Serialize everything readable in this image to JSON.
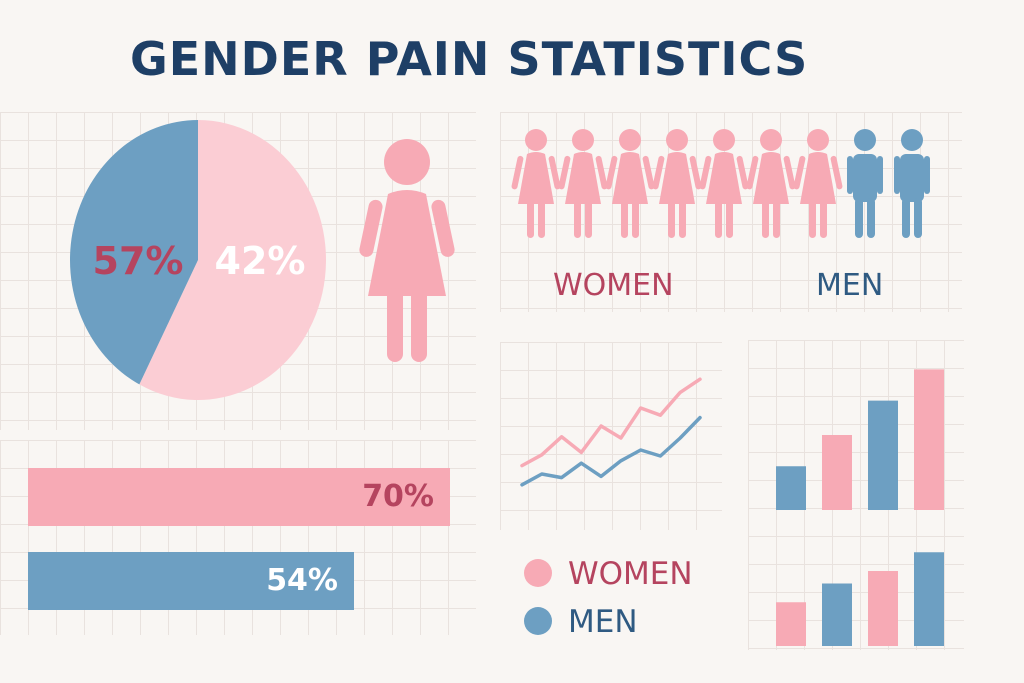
{
  "title": "GENDER PAIN STATISTICS",
  "colors": {
    "women": "#f7aab5",
    "women_light": "#fbcdd4",
    "men": "#6d9fc2",
    "women_text": "#b5445f",
    "men_text": "#2f5a82",
    "title": "#1e3f66"
  },
  "pictogram": {
    "women_label": "WOMEN",
    "men_label": "MEN",
    "women_count": 7,
    "men_count": 2
  },
  "legend": {
    "women": "WOMEN",
    "men": "MEN"
  },
  "chart_data": [
    {
      "type": "pie",
      "slices": [
        {
          "label": "57%",
          "value": 57,
          "color": "#fbcdd4"
        },
        {
          "label": "42%",
          "value": 42,
          "color": "#6d9fc2"
        }
      ]
    },
    {
      "type": "bar",
      "orientation": "horizontal",
      "categories": [
        "70%",
        "54%"
      ],
      "values": [
        70,
        54
      ],
      "xlim": [
        0,
        100
      ]
    },
    {
      "type": "line",
      "x": [
        1,
        2,
        3,
        4,
        5,
        6,
        7,
        8,
        9,
        10
      ],
      "series": [
        {
          "values": [
            2.2,
            3.1,
            4.6,
            3.3,
            5.5,
            4.5,
            7.0,
            6.4,
            8.3,
            9.4
          ]
        },
        {
          "values": [
            0.6,
            1.5,
            1.2,
            2.4,
            1.3,
            2.6,
            3.5,
            3.0,
            4.5,
            6.2
          ]
        }
      ],
      "ylim": [
        0,
        10
      ]
    },
    {
      "type": "bar",
      "categories": [
        "1",
        "2",
        "3",
        "4"
      ],
      "values": [
        14,
        24,
        35,
        45
      ],
      "ylim": [
        0,
        48
      ]
    },
    {
      "type": "bar",
      "categories": [
        "1",
        "2",
        "3",
        "4"
      ],
      "values": [
        14,
        20,
        24,
        30
      ],
      "ylim": [
        0,
        32
      ]
    }
  ]
}
